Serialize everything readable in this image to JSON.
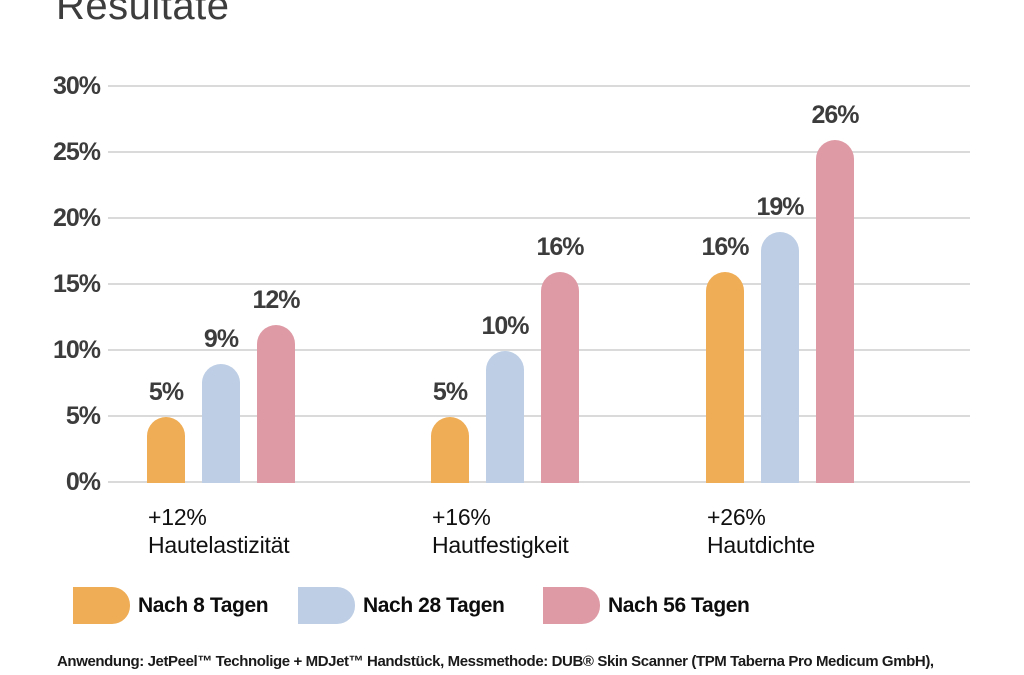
{
  "title": "Resultate",
  "chart_data": {
    "type": "bar",
    "title": "Resultate",
    "categories": [
      {
        "delta": "+12%",
        "name": "Hautelastizität"
      },
      {
        "delta": "+16%",
        "name": "Hautfestigkeit"
      },
      {
        "delta": "+26%",
        "name": "Hautdichte"
      }
    ],
    "series": [
      {
        "name": "Nach 8 Tagen",
        "color": "#EFAD55",
        "values": [
          5,
          5,
          16
        ]
      },
      {
        "name": "Nach 28 Tagen",
        "color": "#BDCEE5",
        "values": [
          9,
          10,
          19
        ]
      },
      {
        "name": "Nach 56 Tagen",
        "color": "#DE9BA6",
        "values": [
          12,
          16,
          26
        ]
      }
    ],
    "value_suffix": "%",
    "y_ticks": [
      "30%",
      "25%",
      "20%",
      "15%",
      "10%",
      "5%",
      "0%"
    ],
    "ylim": [
      0,
      30
    ],
    "grid": true,
    "legend_position": "bottom"
  },
  "footer": {
    "text": "Anwendung: JetPeel™ Technolige + MDJet™ Handstück, Messmethode: DUB® Skin Scanner (TPM Taberna Pro Medicum GmbH),"
  },
  "colors": {
    "axis_text": "#3C3C3C",
    "gridline": "#DADADA",
    "label_text": "#101010"
  }
}
